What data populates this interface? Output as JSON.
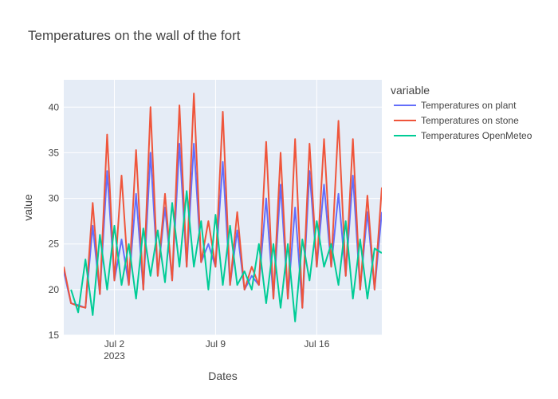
{
  "chart_data": {
    "type": "line",
    "title": "Temperatures on the wall of the fort",
    "xlabel": "Dates",
    "ylabel": "value",
    "legend": {
      "title": "variable",
      "placement": "right"
    },
    "grid": true,
    "colors": {
      "plot_background": "#E5ECF6",
      "grid": "#ffffff",
      "text": "#444444"
    },
    "xlim": [
      "2023-06-28 12:00",
      "2023-07-20 12:00"
    ],
    "ylim": [
      15,
      43
    ],
    "x_ticks": [
      {
        "value": "2023-07-02",
        "label": "Jul 2",
        "sublabel": "2023"
      },
      {
        "value": "2023-07-09",
        "label": "Jul 9",
        "sublabel": ""
      },
      {
        "value": "2023-07-16",
        "label": "Jul 16",
        "sublabel": ""
      }
    ],
    "y_ticks": [
      15,
      20,
      25,
      30,
      35,
      40
    ],
    "series": [
      {
        "name": "Temperatures on plant",
        "color": "#636EFA",
        "points": [
          [
            "2023-06-28 12:00",
            22.0
          ],
          [
            "2023-06-29 00:00",
            18.5
          ],
          [
            "2023-06-29 12:00",
            18.3
          ],
          [
            "2023-06-30 00:00",
            18.0
          ],
          [
            "2023-06-30 12:00",
            27.0
          ],
          [
            "2023-07-01 00:00",
            19.5
          ],
          [
            "2023-07-01 12:00",
            33.0
          ],
          [
            "2023-07-02 00:00",
            21.0
          ],
          [
            "2023-07-02 12:00",
            25.5
          ],
          [
            "2023-07-03 00:00",
            20.5
          ],
          [
            "2023-07-03 12:00",
            30.5
          ],
          [
            "2023-07-04 00:00",
            20.0
          ],
          [
            "2023-07-04 12:00",
            35.0
          ],
          [
            "2023-07-05 00:00",
            21.5
          ],
          [
            "2023-07-05 12:00",
            29.0
          ],
          [
            "2023-07-06 00:00",
            21.0
          ],
          [
            "2023-07-06 12:00",
            36.0
          ],
          [
            "2023-07-07 00:00",
            22.5
          ],
          [
            "2023-07-07 12:00",
            36.0
          ],
          [
            "2023-07-08 00:00",
            23.0
          ],
          [
            "2023-07-08 12:00",
            25.0
          ],
          [
            "2023-07-09 00:00",
            22.5
          ],
          [
            "2023-07-09 12:00",
            34.0
          ],
          [
            "2023-07-10 00:00",
            20.5
          ],
          [
            "2023-07-10 12:00",
            26.5
          ],
          [
            "2023-07-11 00:00",
            20.0
          ],
          [
            "2023-07-11 12:00",
            21.5
          ],
          [
            "2023-07-12 00:00",
            20.5
          ],
          [
            "2023-07-12 12:00",
            30.0
          ],
          [
            "2023-07-13 00:00",
            19.0
          ],
          [
            "2023-07-13 12:00",
            31.5
          ],
          [
            "2023-07-14 00:00",
            19.0
          ],
          [
            "2023-07-14 12:00",
            29.0
          ],
          [
            "2023-07-15 00:00",
            18.0
          ],
          [
            "2023-07-15 12:00",
            33.0
          ],
          [
            "2023-07-16 00:00",
            22.5
          ],
          [
            "2023-07-16 12:00",
            31.5
          ],
          [
            "2023-07-17 00:00",
            22.5
          ],
          [
            "2023-07-17 12:00",
            30.5
          ],
          [
            "2023-07-18 00:00",
            21.5
          ],
          [
            "2023-07-18 12:00",
            32.5
          ],
          [
            "2023-07-19 00:00",
            20.0
          ],
          [
            "2023-07-19 12:00",
            28.5
          ],
          [
            "2023-07-20 00:00",
            20.0
          ],
          [
            "2023-07-20 12:00",
            28.5
          ]
        ]
      },
      {
        "name": "Temperatures on stone",
        "color": "#EF553B",
        "points": [
          [
            "2023-06-28 12:00",
            22.5
          ],
          [
            "2023-06-29 00:00",
            18.5
          ],
          [
            "2023-06-29 12:00",
            18.2
          ],
          [
            "2023-06-30 00:00",
            18.0
          ],
          [
            "2023-06-30 12:00",
            29.5
          ],
          [
            "2023-07-01 00:00",
            19.5
          ],
          [
            "2023-07-01 12:00",
            37.0
          ],
          [
            "2023-07-02 00:00",
            21.0
          ],
          [
            "2023-07-02 12:00",
            32.5
          ],
          [
            "2023-07-03 00:00",
            20.5
          ],
          [
            "2023-07-03 12:00",
            35.3
          ],
          [
            "2023-07-04 00:00",
            20.0
          ],
          [
            "2023-07-04 12:00",
            40.0
          ],
          [
            "2023-07-05 00:00",
            21.5
          ],
          [
            "2023-07-05 12:00",
            30.5
          ],
          [
            "2023-07-06 00:00",
            21.0
          ],
          [
            "2023-07-06 12:00",
            40.2
          ],
          [
            "2023-07-07 00:00",
            22.5
          ],
          [
            "2023-07-07 12:00",
            41.5
          ],
          [
            "2023-07-08 00:00",
            23.0
          ],
          [
            "2023-07-08 12:00",
            27.5
          ],
          [
            "2023-07-09 00:00",
            22.5
          ],
          [
            "2023-07-09 12:00",
            39.5
          ],
          [
            "2023-07-10 00:00",
            20.5
          ],
          [
            "2023-07-10 12:00",
            28.5
          ],
          [
            "2023-07-11 00:00",
            20.0
          ],
          [
            "2023-07-11 12:00",
            22.5
          ],
          [
            "2023-07-12 00:00",
            20.5
          ],
          [
            "2023-07-12 12:00",
            36.2
          ],
          [
            "2023-07-13 00:00",
            19.0
          ],
          [
            "2023-07-13 12:00",
            35.0
          ],
          [
            "2023-07-14 00:00",
            19.0
          ],
          [
            "2023-07-14 12:00",
            36.5
          ],
          [
            "2023-07-15 00:00",
            18.0
          ],
          [
            "2023-07-15 12:00",
            36.0
          ],
          [
            "2023-07-16 00:00",
            22.5
          ],
          [
            "2023-07-16 12:00",
            36.5
          ],
          [
            "2023-07-17 00:00",
            22.5
          ],
          [
            "2023-07-17 12:00",
            38.5
          ],
          [
            "2023-07-18 00:00",
            21.5
          ],
          [
            "2023-07-18 12:00",
            36.5
          ],
          [
            "2023-07-19 00:00",
            20.0
          ],
          [
            "2023-07-19 12:00",
            30.3
          ],
          [
            "2023-07-20 00:00",
            20.0
          ],
          [
            "2023-07-20 12:00",
            31.2
          ]
        ]
      },
      {
        "name": "Temperatures OpenMeteo",
        "color": "#00CC96",
        "points": [
          [
            "2023-06-29 00:00",
            20.0
          ],
          [
            "2023-06-29 12:00",
            17.5
          ],
          [
            "2023-06-30 00:00",
            23.3
          ],
          [
            "2023-06-30 12:00",
            17.2
          ],
          [
            "2023-07-01 00:00",
            26.0
          ],
          [
            "2023-07-01 12:00",
            20.0
          ],
          [
            "2023-07-02 00:00",
            27.0
          ],
          [
            "2023-07-02 12:00",
            20.5
          ],
          [
            "2023-07-03 00:00",
            25.0
          ],
          [
            "2023-07-03 12:00",
            19.0
          ],
          [
            "2023-07-04 00:00",
            26.7
          ],
          [
            "2023-07-04 12:00",
            21.5
          ],
          [
            "2023-07-05 00:00",
            26.5
          ],
          [
            "2023-07-05 12:00",
            20.8
          ],
          [
            "2023-07-06 00:00",
            29.5
          ],
          [
            "2023-07-06 12:00",
            22.5
          ],
          [
            "2023-07-07 00:00",
            30.8
          ],
          [
            "2023-07-07 12:00",
            22.5
          ],
          [
            "2023-07-08 00:00",
            27.5
          ],
          [
            "2023-07-08 12:00",
            20.0
          ],
          [
            "2023-07-09 00:00",
            28.2
          ],
          [
            "2023-07-09 12:00",
            20.5
          ],
          [
            "2023-07-10 00:00",
            27.0
          ],
          [
            "2023-07-10 12:00",
            20.5
          ],
          [
            "2023-07-11 00:00",
            22.0
          ],
          [
            "2023-07-11 12:00",
            20.0
          ],
          [
            "2023-07-12 00:00",
            25.0
          ],
          [
            "2023-07-12 12:00",
            18.5
          ],
          [
            "2023-07-13 00:00",
            25.0
          ],
          [
            "2023-07-13 12:00",
            18.0
          ],
          [
            "2023-07-14 00:00",
            25.0
          ],
          [
            "2023-07-14 12:00",
            16.5
          ],
          [
            "2023-07-15 00:00",
            25.5
          ],
          [
            "2023-07-15 12:00",
            21.0
          ],
          [
            "2023-07-16 00:00",
            27.5
          ],
          [
            "2023-07-16 12:00",
            22.5
          ],
          [
            "2023-07-17 00:00",
            25.0
          ],
          [
            "2023-07-17 12:00",
            20.5
          ],
          [
            "2023-07-18 00:00",
            27.5
          ],
          [
            "2023-07-18 12:00",
            19.0
          ],
          [
            "2023-07-19 00:00",
            25.5
          ],
          [
            "2023-07-19 12:00",
            19.0
          ],
          [
            "2023-07-20 00:00",
            24.5
          ],
          [
            "2023-07-20 12:00",
            24.0
          ]
        ]
      }
    ]
  }
}
